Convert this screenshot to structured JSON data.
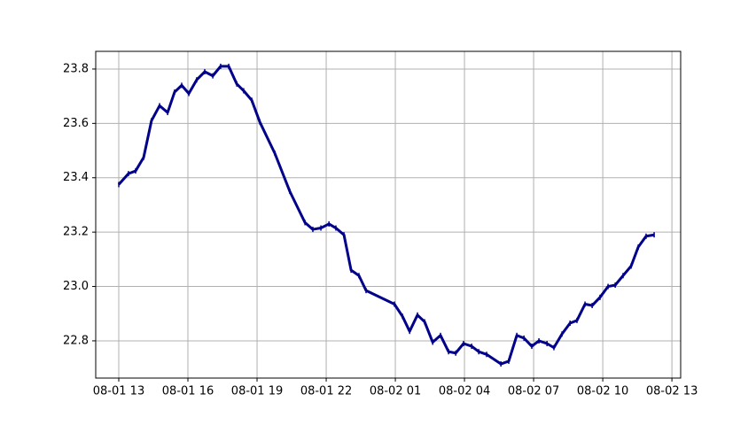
{
  "chart_data": {
    "type": "line",
    "x": [
      13.0,
      13.42,
      13.73,
      14.08,
      14.42,
      14.77,
      15.12,
      15.42,
      15.73,
      16.04,
      16.38,
      16.73,
      17.08,
      17.42,
      17.77,
      18.12,
      18.42,
      18.77,
      19.12,
      19.77,
      20.42,
      21.08,
      21.42,
      21.77,
      22.12,
      22.42,
      22.77,
      23.08,
      23.42,
      23.73,
      24.96,
      25.31,
      25.62,
      25.96,
      26.27,
      26.62,
      26.96,
      27.31,
      27.62,
      27.96,
      28.31,
      28.62,
      28.96,
      29.58,
      29.92,
      30.27,
      30.58,
      30.92,
      31.23,
      31.58,
      31.88,
      32.23,
      32.58,
      32.88,
      33.23,
      33.54,
      33.88,
      34.23,
      34.54,
      34.88,
      35.23,
      35.54,
      35.88,
      36.23
    ],
    "series": [
      {
        "color": "#00008b",
        "values": [
          23.375,
          23.415,
          23.425,
          23.475,
          23.61,
          23.665,
          23.64,
          23.715,
          23.74,
          23.71,
          23.76,
          23.79,
          23.775,
          23.81,
          23.81,
          23.745,
          23.72,
          23.685,
          23.605,
          23.49,
          23.35,
          23.235,
          23.21,
          23.215,
          23.23,
          23.215,
          23.19,
          23.06,
          23.04,
          22.985,
          22.935,
          22.89,
          22.835,
          22.895,
          22.87,
          22.795,
          22.82,
          22.76,
          22.755,
          22.79,
          22.78,
          22.76,
          22.75,
          22.715,
          22.725,
          22.82,
          22.81,
          22.78,
          22.8,
          22.79,
          22.775,
          22.825,
          22.865,
          22.875,
          22.935,
          22.93,
          22.96,
          23.0,
          23.005,
          23.04,
          23.075,
          23.145,
          23.185,
          23.19
        ]
      }
    ],
    "xlim": [
      12.0,
      37.38
    ],
    "xticks": [
      {
        "value": 13,
        "label": "08-01 13"
      },
      {
        "value": 16,
        "label": "08-01 16"
      },
      {
        "value": 19,
        "label": "08-01 19"
      },
      {
        "value": 22,
        "label": "08-01 22"
      },
      {
        "value": 25,
        "label": "08-02 01"
      },
      {
        "value": 28,
        "label": "08-02 04"
      },
      {
        "value": 31,
        "label": "08-02 07"
      },
      {
        "value": 34,
        "label": "08-02 10"
      },
      {
        "value": 37,
        "label": "08-02 13"
      }
    ],
    "ylim": [
      22.663,
      23.865
    ],
    "yticks": [
      {
        "value": 22.8,
        "label": "22.8"
      },
      {
        "value": 23.0,
        "label": "23.0"
      },
      {
        "value": 23.2,
        "label": "23.2"
      },
      {
        "value": 23.4,
        "label": "23.4"
      },
      {
        "value": 23.6,
        "label": "23.6"
      },
      {
        "value": 23.8,
        "label": "23.8"
      }
    ],
    "grid": true
  }
}
